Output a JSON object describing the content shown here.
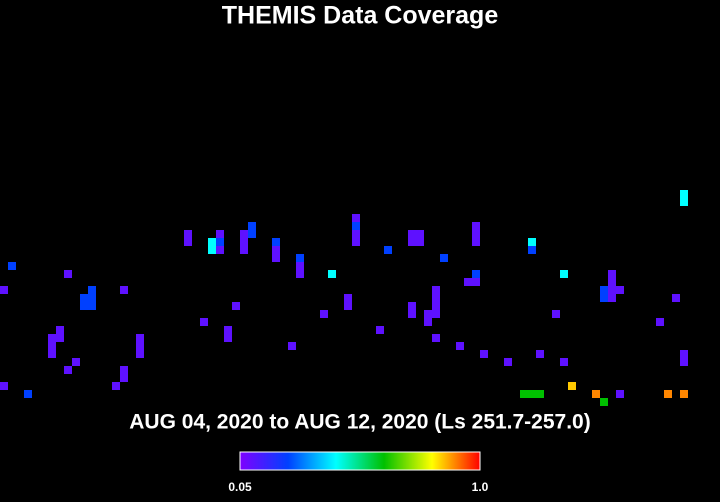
{
  "chart_data": {
    "type": "heatmap",
    "title": "THEMIS Data Coverage",
    "subtitle": "AUG 04, 2020 to AUG 12, 2020 (Ls 251.7-257.0)",
    "x": [
      85,
      85,
      23,
      23,
      26,
      26,
      27,
      27,
      27,
      31,
      31,
      30,
      30,
      30,
      34,
      34,
      34,
      37,
      37,
      37,
      41,
      44,
      44,
      44,
      44,
      48,
      51,
      51,
      52,
      52,
      55,
      59,
      59,
      59,
      66,
      66,
      59,
      58,
      59,
      70,
      76,
      76,
      76,
      75,
      75,
      77,
      76,
      1,
      8,
      0,
      11,
      11,
      10,
      10,
      11,
      15,
      29,
      43,
      43,
      40,
      51,
      51,
      54,
      54,
      54,
      54,
      53,
      53,
      69,
      84,
      25,
      82,
      7,
      7,
      6,
      6,
      6,
      28,
      28,
      17,
      17,
      17,
      47,
      54,
      36,
      57,
      60,
      85,
      85,
      67,
      9,
      63,
      70,
      8,
      15,
      15,
      14,
      0,
      3,
      65,
      66,
      67,
      71,
      74,
      75,
      77,
      83,
      85
    ],
    "y": [
      23,
      24,
      28,
      29,
      29,
      30,
      28,
      29,
      30,
      27,
      28,
      28,
      29,
      30,
      29,
      30,
      31,
      31,
      32,
      33,
      33,
      26,
      27,
      28,
      29,
      30,
      28,
      29,
      28,
      29,
      31,
      27,
      28,
      29,
      29,
      30,
      33,
      34,
      34,
      33,
      33,
      34,
      35,
      35,
      36,
      35,
      36,
      32,
      33,
      35,
      35,
      36,
      36,
      37,
      37,
      35,
      37,
      36,
      37,
      38,
      37,
      38,
      35,
      36,
      37,
      38,
      38,
      39,
      38,
      36,
      39,
      39,
      40,
      41,
      41,
      42,
      43,
      40,
      41,
      41,
      42,
      43,
      40,
      41,
      42,
      42,
      43,
      43,
      44,
      43,
      44,
      44,
      44,
      45,
      45,
      46,
      47,
      47,
      48,
      48,
      48,
      48,
      47,
      48,
      49,
      48,
      48,
      48
    ],
    "values": [
      0.43,
      0.43,
      0.1,
      0.1,
      0.43,
      0.43,
      0.1,
      0.24,
      0.1,
      0.24,
      0.24,
      0.1,
      0.1,
      0.1,
      0.24,
      0.1,
      0.1,
      0.24,
      0.1,
      0.1,
      0.43,
      0.1,
      0.24,
      0.1,
      0.1,
      0.24,
      0.1,
      0.1,
      0.1,
      0.1,
      0.24,
      0.1,
      0.1,
      0.1,
      0.43,
      0.24,
      0.24,
      0.1,
      0.1,
      0.43,
      0.1,
      0.1,
      0.1,
      0.24,
      0.24,
      0.1,
      0.1,
      0.24,
      0.1,
      0.1,
      0.24,
      0.24,
      0.24,
      0.24,
      0.24,
      0.1,
      0.1,
      0.1,
      0.1,
      0.1,
      0.1,
      0.1,
      0.1,
      0.1,
      0.1,
      0.1,
      0.1,
      0.1,
      0.1,
      0.1,
      0.1,
      0.1,
      0.1,
      0.1,
      0.1,
      0.1,
      0.1,
      0.1,
      0.1,
      0.1,
      0.1,
      0.1,
      0.1,
      0.1,
      0.1,
      0.1,
      0.1,
      0.1,
      0.1,
      0.1,
      0.1,
      0.1,
      0.1,
      0.1,
      0.1,
      0.1,
      0.1,
      0.1,
      0.24,
      0.62,
      0.62,
      0.62,
      0.85,
      0.9,
      0.62,
      0.1,
      0.9,
      0.9
    ],
    "colormap": [
      "#7f00ff",
      "#0040ff",
      "#00ffff",
      "#00c000",
      "#ffff00",
      "#ff0000"
    ],
    "clim": [
      0.05,
      1.0
    ],
    "cticks": [
      0.05,
      {
        "value": 1.0,
        "label": "1.0"
      }
    ]
  }
}
